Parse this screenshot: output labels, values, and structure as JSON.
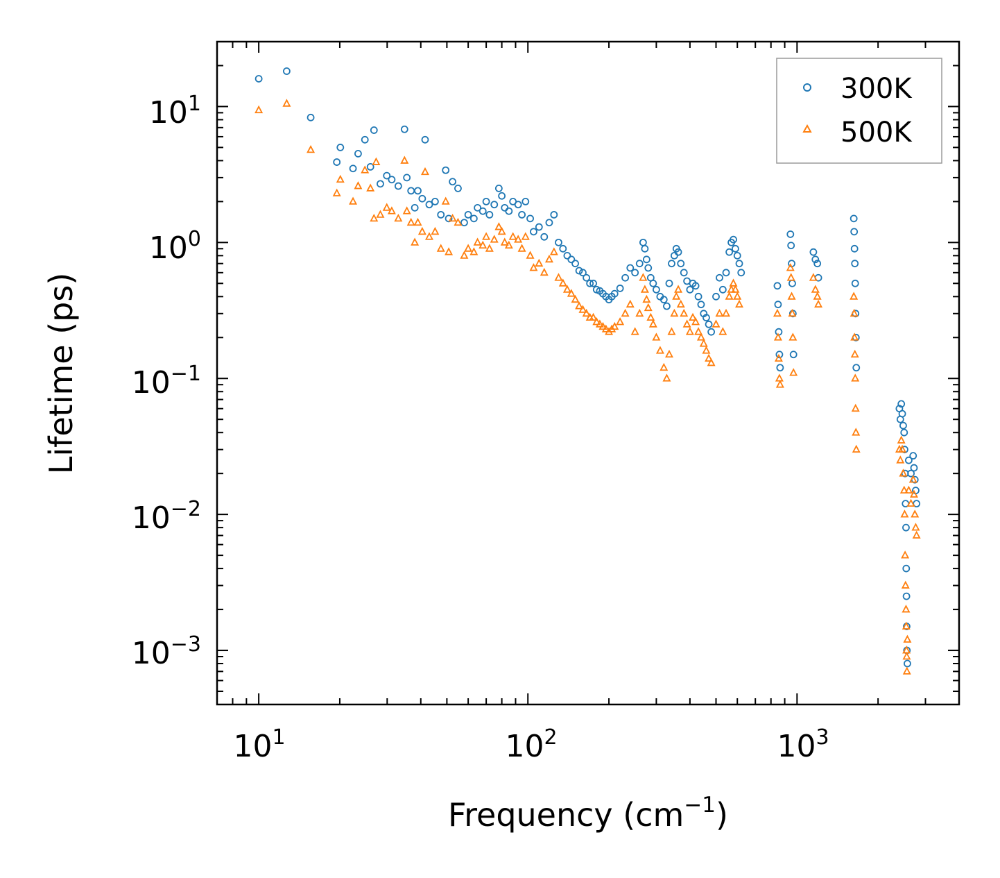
{
  "chart_data": {
    "type": "scatter",
    "title": "",
    "xlabel": "Frequency (cm",
    "xlabel_sup": "−1",
    "xlabel_tail": ")",
    "ylabel": "Lifetime (ps)",
    "xscale": "log",
    "yscale": "log",
    "xlim": [
      7,
      4000
    ],
    "ylim": [
      0.0004,
      30
    ],
    "x_ticks": [
      {
        "value": 10,
        "base": "10",
        "exp": "1"
      },
      {
        "value": 100,
        "base": "10",
        "exp": "2"
      },
      {
        "value": 1000,
        "base": "10",
        "exp": "3"
      }
    ],
    "y_ticks": [
      {
        "value": 10,
        "base": "10",
        "exp": "1"
      },
      {
        "value": 1,
        "base": "10",
        "exp": "0"
      },
      {
        "value": 0.1,
        "base": "10",
        "exp": "−1"
      },
      {
        "value": 0.01,
        "base": "10",
        "exp": "−2"
      },
      {
        "value": 0.001,
        "base": "10",
        "exp": "−3"
      }
    ],
    "legend_position": "top-right",
    "series": [
      {
        "name": "300K",
        "marker": "circle",
        "color": "#1f77b4",
        "points": [
          [
            10,
            16
          ],
          [
            12.7,
            18.2
          ],
          [
            15.6,
            8.3
          ],
          [
            19.5,
            3.9
          ],
          [
            20.1,
            5
          ],
          [
            22.4,
            3.5
          ],
          [
            23.4,
            4.5
          ],
          [
            24.8,
            5.7
          ],
          [
            26,
            3.6
          ],
          [
            26.8,
            6.7
          ],
          [
            28.3,
            2.7
          ],
          [
            29.9,
            3.1
          ],
          [
            31.2,
            2.9
          ],
          [
            33,
            2.6
          ],
          [
            34.8,
            6.8
          ],
          [
            35.5,
            3
          ],
          [
            36.8,
            2.4
          ],
          [
            38,
            1.8
          ],
          [
            39,
            2.4
          ],
          [
            40.5,
            2.1
          ],
          [
            41.5,
            5.7
          ],
          [
            43,
            1.9
          ],
          [
            45.2,
            2
          ],
          [
            47.5,
            1.6
          ],
          [
            49.5,
            3.4
          ],
          [
            50.8,
            1.5
          ],
          [
            52.5,
            2.8
          ],
          [
            55,
            2.5
          ],
          [
            58,
            1.4
          ],
          [
            60,
            1.6
          ],
          [
            63,
            1.5
          ],
          [
            65,
            1.8
          ],
          [
            68,
            1.7
          ],
          [
            70,
            2
          ],
          [
            72,
            1.6
          ],
          [
            75,
            1.9
          ],
          [
            78,
            2.5
          ],
          [
            80,
            2.2
          ],
          [
            82,
            1.8
          ],
          [
            85,
            1.7
          ],
          [
            88,
            2
          ],
          [
            92,
            1.9
          ],
          [
            95,
            1.6
          ],
          [
            98,
            2
          ],
          [
            102,
            1.5
          ],
          [
            105,
            1.2
          ],
          [
            110,
            1.3
          ],
          [
            115,
            1.1
          ],
          [
            120,
            1.4
          ],
          [
            125,
            1.6
          ],
          [
            130,
            1
          ],
          [
            135,
            0.9
          ],
          [
            140,
            0.8
          ],
          [
            145,
            0.75
          ],
          [
            150,
            0.7
          ],
          [
            155,
            0.62
          ],
          [
            160,
            0.6
          ],
          [
            165,
            0.55
          ],
          [
            170,
            0.5
          ],
          [
            175,
            0.5
          ],
          [
            180,
            0.45
          ],
          [
            185,
            0.44
          ],
          [
            190,
            0.42
          ],
          [
            195,
            0.4
          ],
          [
            200,
            0.38
          ],
          [
            205,
            0.4
          ],
          [
            210,
            0.42
          ],
          [
            220,
            0.46
          ],
          [
            230,
            0.55
          ],
          [
            240,
            0.65
          ],
          [
            250,
            0.6
          ],
          [
            260,
            0.7
          ],
          [
            268,
            1
          ],
          [
            272,
            0.9
          ],
          [
            276,
            0.75
          ],
          [
            280,
            0.65
          ],
          [
            286,
            0.55
          ],
          [
            292,
            0.5
          ],
          [
            300,
            0.45
          ],
          [
            310,
            0.4
          ],
          [
            320,
            0.38
          ],
          [
            328,
            0.34
          ],
          [
            335,
            0.5
          ],
          [
            342,
            0.7
          ],
          [
            350,
            0.8
          ],
          [
            356,
            0.9
          ],
          [
            362,
            0.85
          ],
          [
            370,
            0.7
          ],
          [
            380,
            0.6
          ],
          [
            390,
            0.52
          ],
          [
            400,
            0.45
          ],
          [
            410,
            0.5
          ],
          [
            420,
            0.48
          ],
          [
            430,
            0.4
          ],
          [
            440,
            0.35
          ],
          [
            450,
            0.3
          ],
          [
            460,
            0.28
          ],
          [
            470,
            0.25
          ],
          [
            480,
            0.22
          ],
          [
            500,
            0.4
          ],
          [
            515,
            0.55
          ],
          [
            530,
            0.45
          ],
          [
            545,
            0.6
          ],
          [
            560,
            0.85
          ],
          [
            570,
            1
          ],
          [
            580,
            1.05
          ],
          [
            590,
            0.9
          ],
          [
            600,
            0.8
          ],
          [
            610,
            0.7
          ],
          [
            620,
            0.6
          ],
          [
            845,
            0.48
          ],
          [
            850,
            0.35
          ],
          [
            855,
            0.22
          ],
          [
            860,
            0.15
          ],
          [
            865,
            0.12
          ],
          [
            945,
            1.15
          ],
          [
            950,
            0.95
          ],
          [
            955,
            0.7
          ],
          [
            960,
            0.5
          ],
          [
            965,
            0.3
          ],
          [
            970,
            0.15
          ],
          [
            1150,
            0.85
          ],
          [
            1170,
            0.75
          ],
          [
            1190,
            0.7
          ],
          [
            1200,
            0.55
          ],
          [
            1625,
            1.5
          ],
          [
            1630,
            1.2
          ],
          [
            1635,
            0.9
          ],
          [
            1640,
            0.7
          ],
          [
            1645,
            0.5
          ],
          [
            1650,
            0.3
          ],
          [
            1655,
            0.2
          ],
          [
            1660,
            0.12
          ],
          [
            2400,
            0.06
          ],
          [
            2420,
            0.05
          ],
          [
            2440,
            0.065
          ],
          [
            2460,
            0.055
          ],
          [
            2480,
            0.045
          ],
          [
            2500,
            0.04
          ],
          [
            2510,
            0.03
          ],
          [
            2520,
            0.02
          ],
          [
            2530,
            0.012
          ],
          [
            2540,
            0.008
          ],
          [
            2545,
            0.004
          ],
          [
            2550,
            0.0025
          ],
          [
            2555,
            0.0015
          ],
          [
            2560,
            0.001
          ],
          [
            2570,
            0.0008
          ],
          [
            2600,
            0.025
          ],
          [
            2650,
            0.02
          ],
          [
            2700,
            0.027
          ],
          [
            2720,
            0.022
          ],
          [
            2740,
            0.018
          ],
          [
            2760,
            0.015
          ],
          [
            2780,
            0.012
          ]
        ]
      },
      {
        "name": "500K",
        "marker": "triangle",
        "color": "#ff7f0e",
        "points": [
          [
            10,
            9.4
          ],
          [
            12.7,
            10.5
          ],
          [
            15.6,
            4.8
          ],
          [
            19.5,
            2.3
          ],
          [
            20.1,
            2.9
          ],
          [
            22.4,
            2
          ],
          [
            23.4,
            2.6
          ],
          [
            24.8,
            3.4
          ],
          [
            26,
            2.5
          ],
          [
            26.8,
            1.5
          ],
          [
            27.3,
            3.9
          ],
          [
            28.3,
            1.6
          ],
          [
            29.9,
            1.8
          ],
          [
            31.2,
            1.7
          ],
          [
            33,
            1.5
          ],
          [
            34.8,
            4
          ],
          [
            35.5,
            1.7
          ],
          [
            36.8,
            1.4
          ],
          [
            38,
            1
          ],
          [
            39,
            1.4
          ],
          [
            40.5,
            1.2
          ],
          [
            41.5,
            3.3
          ],
          [
            43,
            1.1
          ],
          [
            45.2,
            1.2
          ],
          [
            47.5,
            0.9
          ],
          [
            49.5,
            2
          ],
          [
            50.8,
            0.85
          ],
          [
            52.5,
            1.5
          ],
          [
            55,
            1.4
          ],
          [
            58,
            0.8
          ],
          [
            60,
            0.9
          ],
          [
            63,
            0.85
          ],
          [
            65,
            1
          ],
          [
            68,
            0.95
          ],
          [
            70,
            1.1
          ],
          [
            72,
            0.9
          ],
          [
            75,
            1.05
          ],
          [
            78,
            1.3
          ],
          [
            80,
            1.2
          ],
          [
            82,
            1
          ],
          [
            85,
            0.95
          ],
          [
            88,
            1.1
          ],
          [
            92,
            1.05
          ],
          [
            95,
            0.9
          ],
          [
            98,
            1.1
          ],
          [
            102,
            0.8
          ],
          [
            105,
            0.65
          ],
          [
            110,
            0.7
          ],
          [
            115,
            0.6
          ],
          [
            120,
            0.75
          ],
          [
            125,
            0.85
          ],
          [
            130,
            0.55
          ],
          [
            135,
            0.5
          ],
          [
            140,
            0.45
          ],
          [
            145,
            0.42
          ],
          [
            150,
            0.38
          ],
          [
            155,
            0.34
          ],
          [
            160,
            0.32
          ],
          [
            165,
            0.3
          ],
          [
            170,
            0.28
          ],
          [
            175,
            0.28
          ],
          [
            180,
            0.26
          ],
          [
            185,
            0.25
          ],
          [
            190,
            0.24
          ],
          [
            195,
            0.23
          ],
          [
            200,
            0.22
          ],
          [
            205,
            0.23
          ],
          [
            210,
            0.24
          ],
          [
            220,
            0.26
          ],
          [
            230,
            0.3
          ],
          [
            240,
            0.35
          ],
          [
            250,
            0.22
          ],
          [
            260,
            0.3
          ],
          [
            268,
            0.55
          ],
          [
            272,
            0.45
          ],
          [
            276,
            0.38
          ],
          [
            280,
            0.33
          ],
          [
            286,
            0.28
          ],
          [
            292,
            0.25
          ],
          [
            300,
            0.2
          ],
          [
            310,
            0.16
          ],
          [
            320,
            0.12
          ],
          [
            328,
            0.1
          ],
          [
            335,
            0.15
          ],
          [
            342,
            0.22
          ],
          [
            350,
            0.3
          ],
          [
            356,
            0.4
          ],
          [
            362,
            0.45
          ],
          [
            370,
            0.35
          ],
          [
            380,
            0.3
          ],
          [
            390,
            0.25
          ],
          [
            400,
            0.22
          ],
          [
            410,
            0.28
          ],
          [
            420,
            0.26
          ],
          [
            430,
            0.22
          ],
          [
            440,
            0.2
          ],
          [
            450,
            0.18
          ],
          [
            460,
            0.16
          ],
          [
            470,
            0.14
          ],
          [
            480,
            0.13
          ],
          [
            500,
            0.25
          ],
          [
            515,
            0.3
          ],
          [
            530,
            0.22
          ],
          [
            545,
            0.3
          ],
          [
            560,
            0.4
          ],
          [
            570,
            0.45
          ],
          [
            580,
            0.5
          ],
          [
            590,
            0.45
          ],
          [
            600,
            0.4
          ],
          [
            610,
            0.35
          ],
          [
            845,
            0.3
          ],
          [
            850,
            0.2
          ],
          [
            855,
            0.14
          ],
          [
            860,
            0.1
          ],
          [
            865,
            0.09
          ],
          [
            945,
            0.65
          ],
          [
            950,
            0.55
          ],
          [
            955,
            0.4
          ],
          [
            960,
            0.3
          ],
          [
            965,
            0.2
          ],
          [
            970,
            0.11
          ],
          [
            1150,
            0.55
          ],
          [
            1170,
            0.45
          ],
          [
            1190,
            0.4
          ],
          [
            1200,
            0.35
          ],
          [
            1625,
            0.4
          ],
          [
            1630,
            0.3
          ],
          [
            1635,
            0.2
          ],
          [
            1640,
            0.15
          ],
          [
            1645,
            0.1
          ],
          [
            1650,
            0.06
          ],
          [
            1655,
            0.04
          ],
          [
            1660,
            0.03
          ],
          [
            2400,
            0.03
          ],
          [
            2420,
            0.025
          ],
          [
            2440,
            0.035
          ],
          [
            2460,
            0.03
          ],
          [
            2480,
            0.02
          ],
          [
            2500,
            0.015
          ],
          [
            2510,
            0.01
          ],
          [
            2520,
            0.005
          ],
          [
            2530,
            0.003
          ],
          [
            2540,
            0.002
          ],
          [
            2545,
            0.0015
          ],
          [
            2550,
            0.001
          ],
          [
            2555,
            0.0009
          ],
          [
            2560,
            0.0007
          ],
          [
            2570,
            0.0012
          ],
          [
            2600,
            0.015
          ],
          [
            2650,
            0.012
          ],
          [
            2700,
            0.018
          ],
          [
            2720,
            0.014
          ],
          [
            2740,
            0.01
          ],
          [
            2760,
            0.008
          ],
          [
            2780,
            0.007
          ]
        ]
      }
    ]
  }
}
